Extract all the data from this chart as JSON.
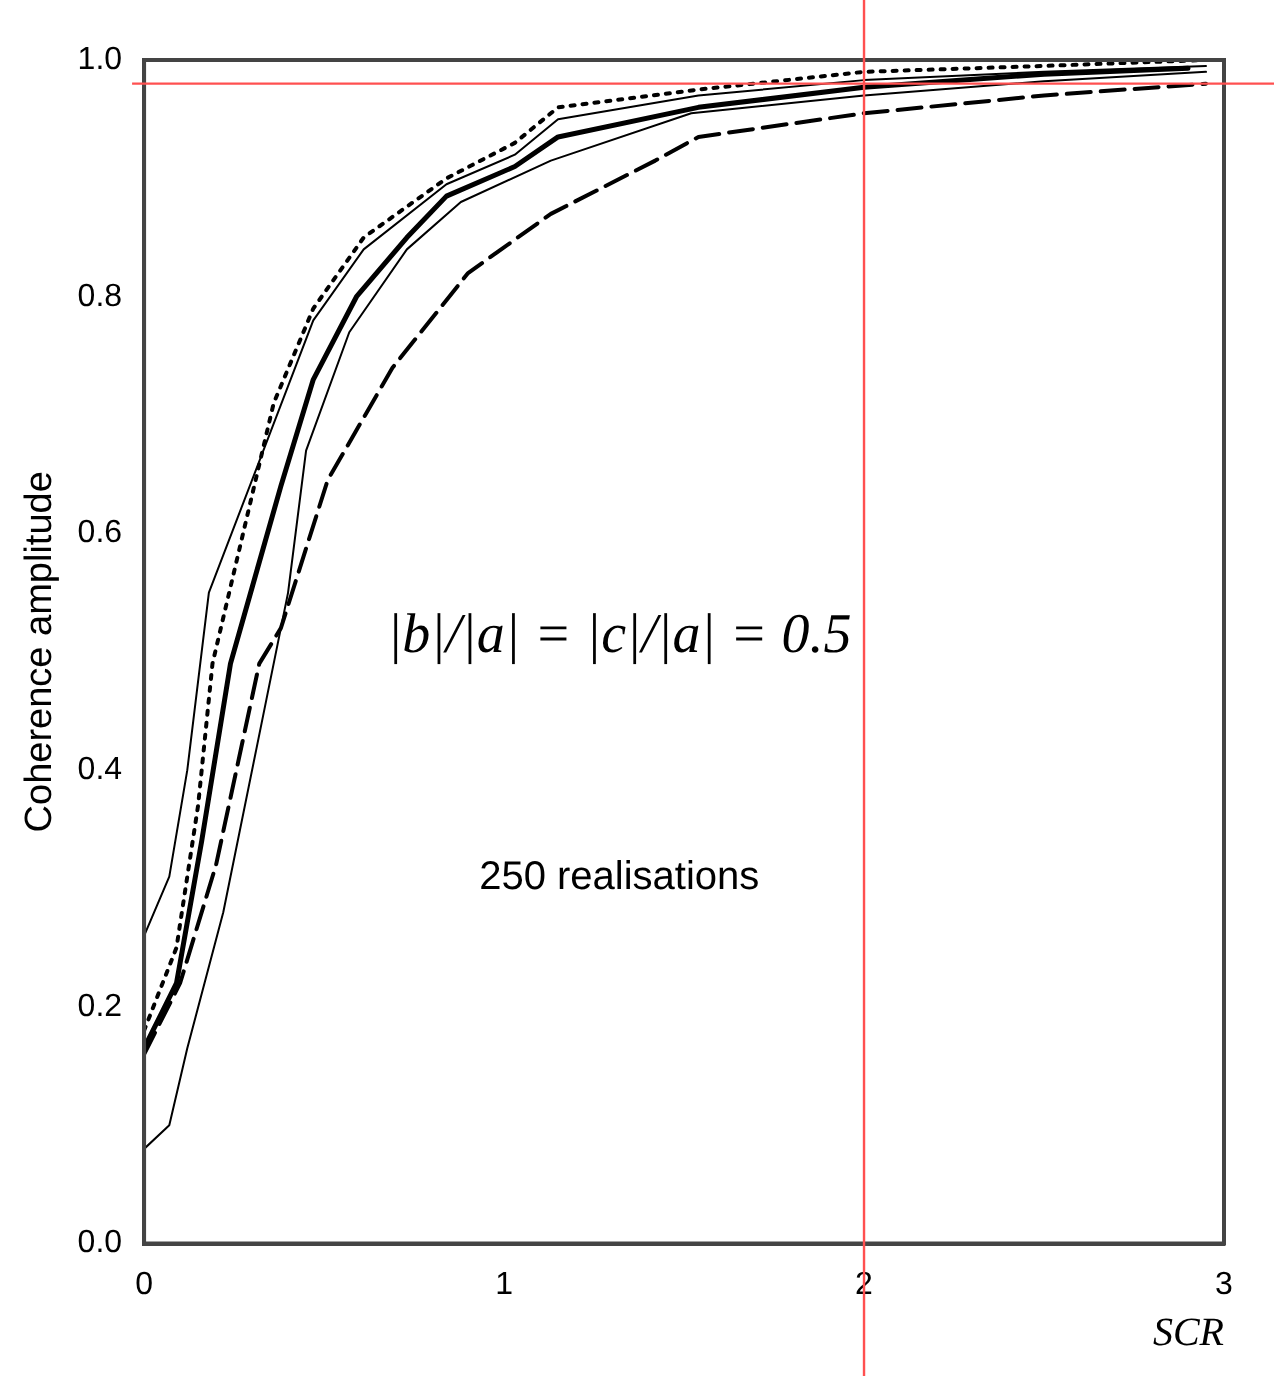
{
  "chart_data": {
    "type": "line",
    "xlabel": "SCR",
    "ylabel": "Coherence amplitude",
    "xlim": [
      0,
      3
    ],
    "xticks": [
      0,
      1,
      2,
      3
    ],
    "ylim": [
      0,
      1.0
    ],
    "yticks": [
      {
        "value": 0,
        "label": "0.0"
      },
      {
        "value": 0.2,
        "label": "0.2"
      },
      {
        "value": 0.4,
        "label": "0.4"
      },
      {
        "value": 0.6,
        "label": "0.6"
      },
      {
        "value": 0.8,
        "label": "0.8"
      },
      {
        "value": 1.0,
        "label": "1.0"
      }
    ],
    "grid": false,
    "legend": false,
    "marker": "none",
    "series": [
      {
        "color": "#000000",
        "line_style": "dotted",
        "x": [
          0,
          0.09,
          0.15,
          0.19,
          0.36,
          0.47,
          0.61,
          0.84,
          1.03,
          1.15,
          1.54,
          2.0,
          2.5,
          2.95
        ],
        "values": [
          0.18,
          0.25,
          0.37,
          0.49,
          0.71,
          0.79,
          0.85,
          0.9,
          0.93,
          0.96,
          0.975,
          0.99,
          0.995,
          1.0
        ]
      },
      {
        "color": "#000000",
        "line_style": "solid",
        "x": [
          0,
          0.07,
          0.12,
          0.18,
          0.47,
          0.61,
          0.84,
          1.03,
          1.15,
          1.54,
          2.0,
          2.5,
          2.95
        ],
        "values": [
          0.26,
          0.31,
          0.4,
          0.55,
          0.78,
          0.84,
          0.895,
          0.92,
          0.95,
          0.97,
          0.983,
          0.99,
          0.995
        ]
      },
      {
        "color": "#000000",
        "line_style": "solid",
        "x": [
          0,
          0.09,
          0.16,
          0.24,
          0.38,
          0.47,
          0.59,
          0.73,
          0.84,
          1.03,
          1.15,
          1.54,
          2.0,
          2.5,
          2.9
        ],
        "values": [
          0.165,
          0.22,
          0.34,
          0.49,
          0.64,
          0.73,
          0.8,
          0.85,
          0.885,
          0.91,
          0.935,
          0.96,
          0.977,
          0.988,
          0.993
        ]
      },
      {
        "color": "#000000",
        "line_style": "solid",
        "x": [
          0,
          0.07,
          0.12,
          0.22,
          0.34,
          0.4,
          0.45,
          0.57,
          0.73,
          0.88,
          1.13,
          1.52,
          2.0,
          2.5,
          2.95
        ],
        "values": [
          0.08,
          0.1,
          0.165,
          0.28,
          0.46,
          0.55,
          0.67,
          0.77,
          0.84,
          0.88,
          0.915,
          0.955,
          0.97,
          0.982,
          0.99
        ]
      },
      {
        "color": "#000000",
        "line_style": "dashed",
        "x": [
          0,
          0.1,
          0.2,
          0.32,
          0.38,
          0.51,
          0.69,
          0.9,
          1.13,
          1.42,
          1.54,
          2.0,
          2.5,
          2.95
        ],
        "values": [
          0.16,
          0.22,
          0.32,
          0.49,
          0.52,
          0.645,
          0.74,
          0.82,
          0.87,
          0.915,
          0.935,
          0.955,
          0.97,
          0.98
        ]
      }
    ],
    "ref_lines": [
      {
        "axis": "x",
        "value": 2,
        "color": "#ff5050"
      },
      {
        "axis": "y",
        "value": 0.98,
        "color": "#ff5050"
      }
    ],
    "annotations": [
      "|b|/|a| = |c|/|a| = 0.5",
      "250 realisations"
    ]
  }
}
